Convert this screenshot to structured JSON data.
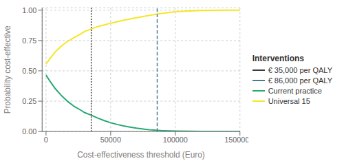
{
  "chart_data": {
    "type": "line",
    "title": "",
    "xlabel": "Cost-effectiveness threshold (Euro)",
    "ylabel": "Probability cost-effective",
    "x": [
      0,
      3000,
      7000,
      12000,
      17000,
      22000,
      27000,
      30000,
      35000,
      40000,
      45000,
      50000,
      55000,
      60000,
      65000,
      70000,
      75000,
      80000,
      85000,
      90000,
      95000,
      100000,
      110000,
      120000,
      130000,
      140000,
      150000
    ],
    "series": [
      {
        "name": "Universal 15",
        "color": "#f5e623",
        "values": [
          0.555,
          0.6,
          0.655,
          0.705,
          0.745,
          0.775,
          0.805,
          0.825,
          0.845,
          0.865,
          0.878,
          0.893,
          0.905,
          0.917,
          0.928,
          0.938,
          0.948,
          0.957,
          0.966,
          0.974,
          0.981,
          0.987,
          0.993,
          0.997,
          0.999,
          1.0,
          1.0
        ]
      },
      {
        "name": "Current practice",
        "color": "#27a871",
        "values": [
          0.465,
          0.415,
          0.355,
          0.295,
          0.245,
          0.205,
          0.175,
          0.155,
          0.135,
          0.11,
          0.09,
          0.072,
          0.058,
          0.046,
          0.036,
          0.027,
          0.02,
          0.014,
          0.01,
          0.007,
          0.005,
          0.004,
          0.002,
          0.001,
          0.001,
          0.001,
          0.001
        ]
      }
    ],
    "reference_lines": [
      {
        "name": "€ 35,000 per QALY",
        "x": 35000,
        "color": "#3d3d3d",
        "line_style": "dotted"
      },
      {
        "name": "€ 86,000 per QALY",
        "x": 86000,
        "color": "#4a7a90",
        "line_style": "dashed"
      }
    ],
    "legend_title": "Interventions",
    "legend": "right",
    "xlim": [
      -3000,
      150000
    ],
    "ylim": [
      0.0,
      1.02
    ],
    "xticks": [
      0,
      50000,
      100000,
      150000
    ],
    "yticks": [
      {
        "value": 0.0,
        "label": "0.00"
      },
      {
        "value": 0.25,
        "label": "0.25"
      },
      {
        "value": 0.5,
        "label": "0.50"
      },
      {
        "value": 0.75,
        "label": "0.75"
      },
      {
        "value": 1.0,
        "label": "1.00"
      }
    ],
    "grid": true
  }
}
